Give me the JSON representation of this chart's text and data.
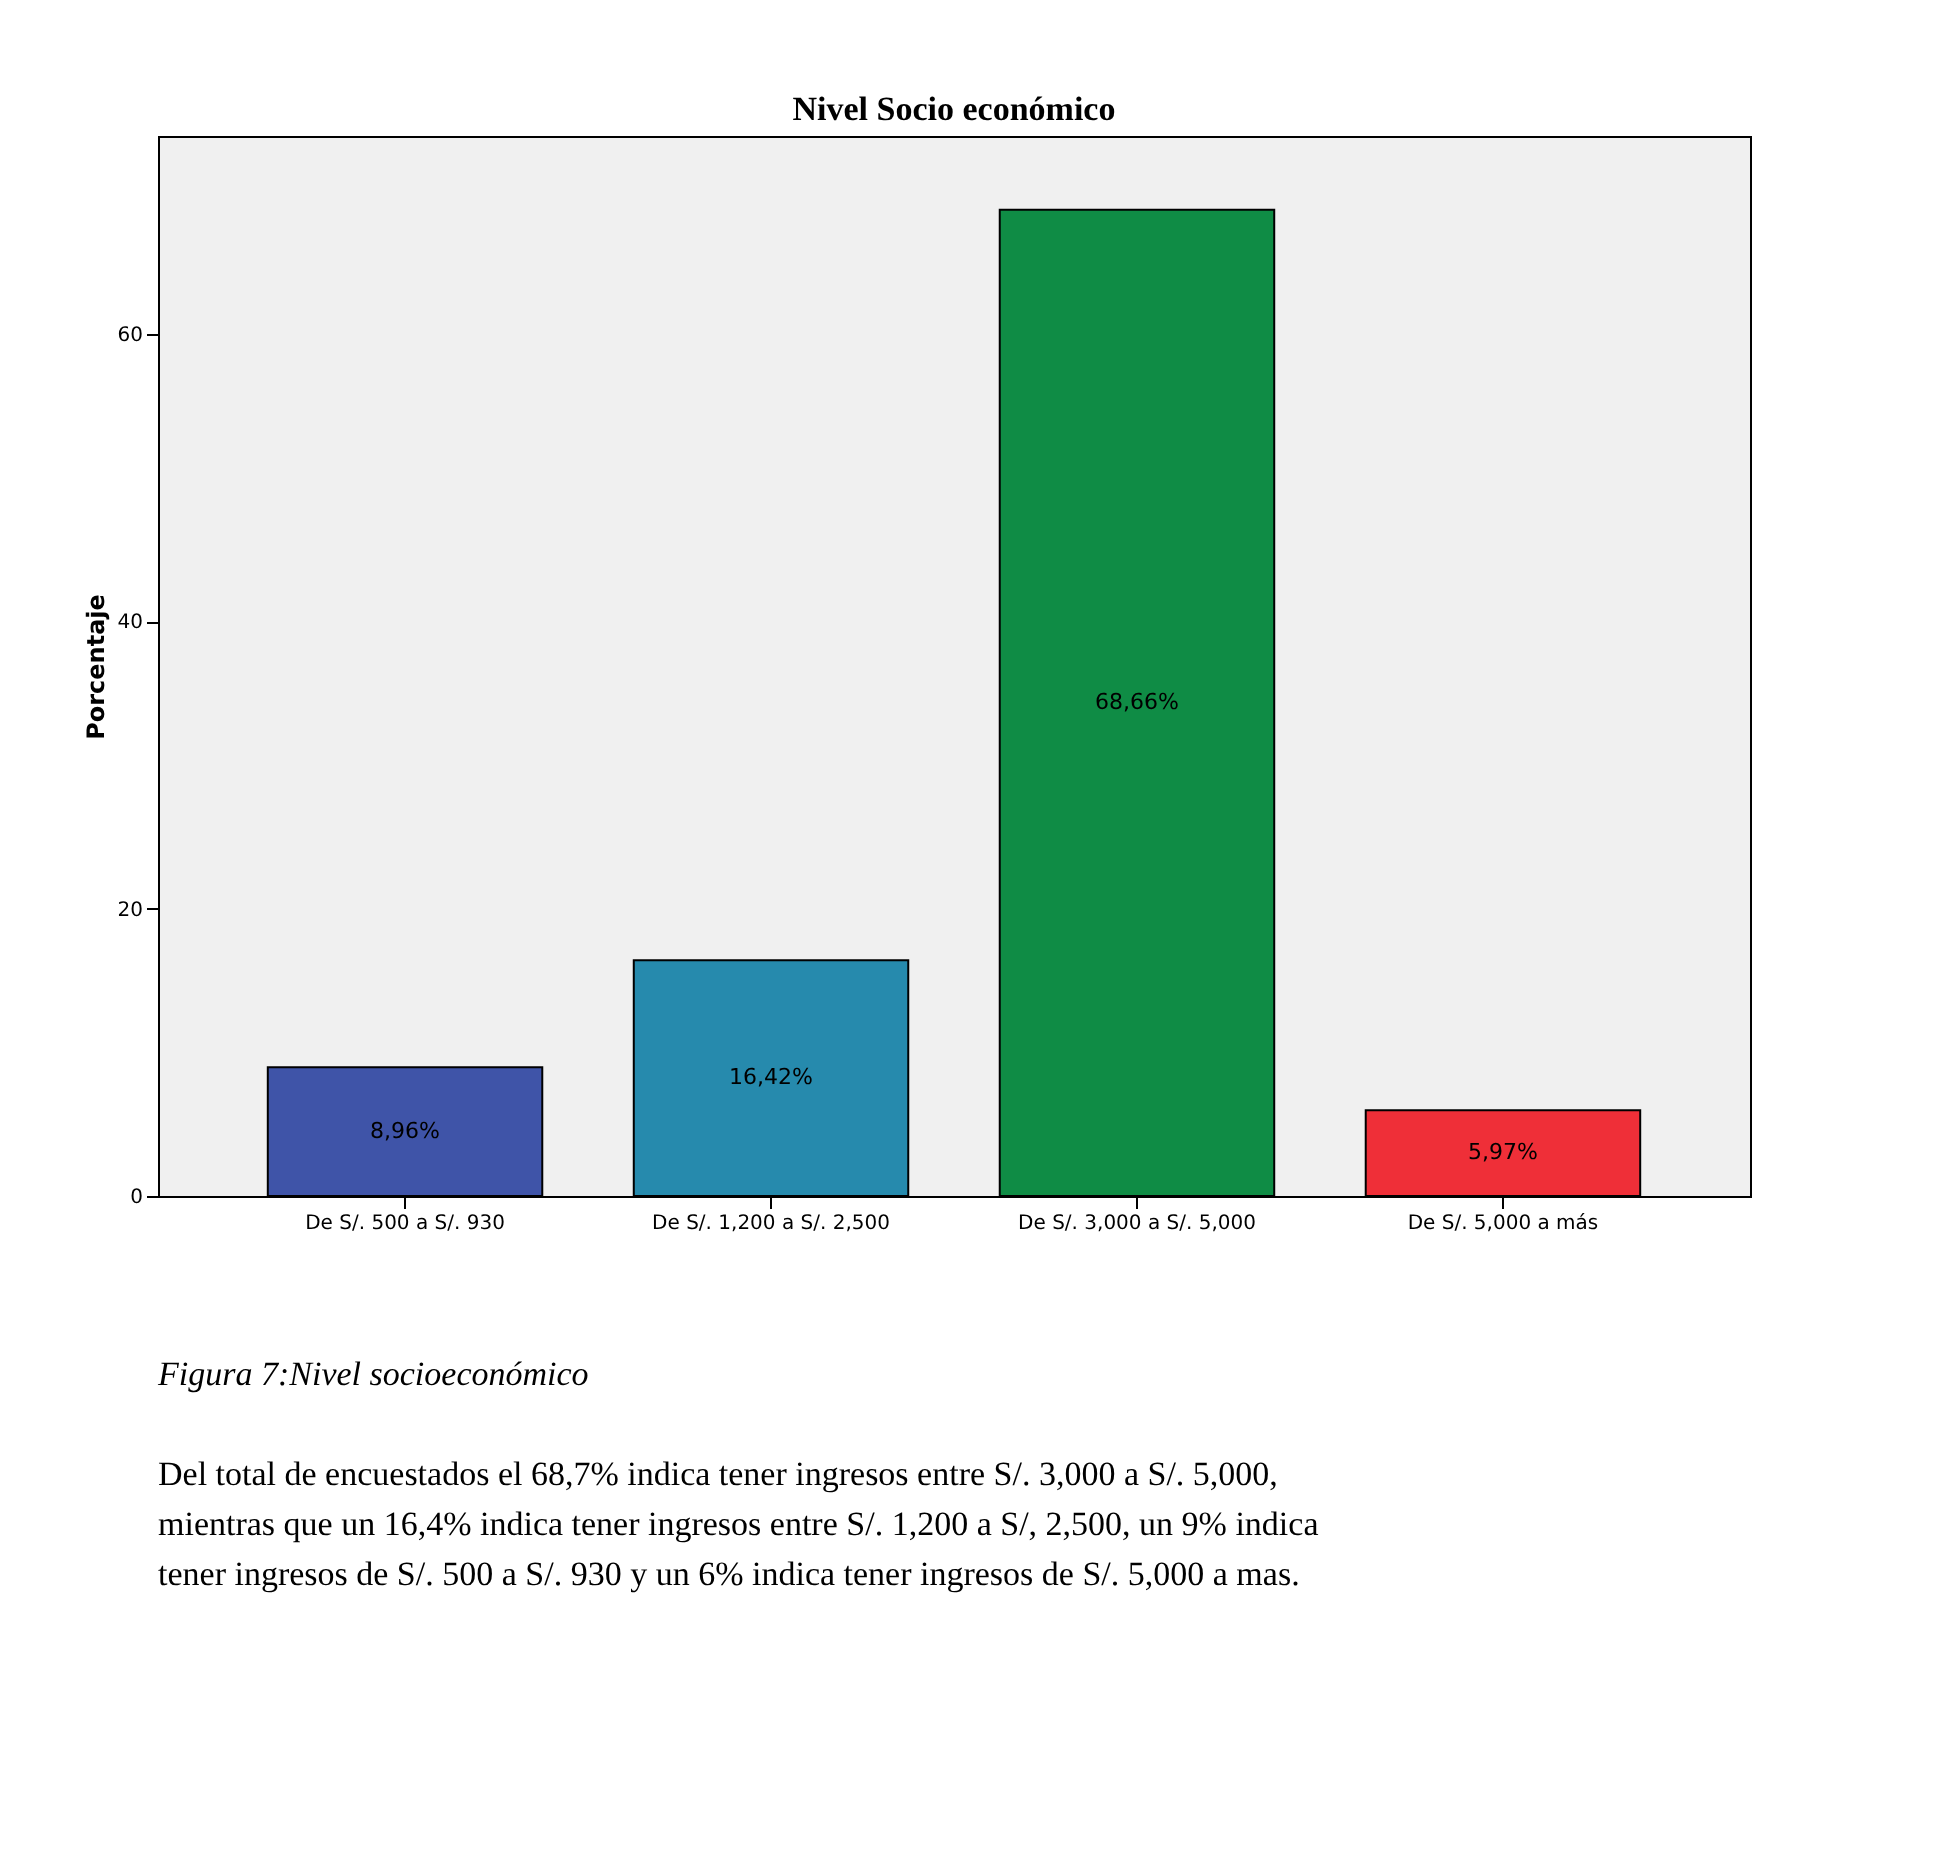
{
  "chart_data": {
    "type": "bar",
    "title": "Nivel Socio económico",
    "ylabel": "Porcentaje",
    "categories": [
      "De S/. 500 a S/. 930",
      "De S/. 1,200 a S/. 2,500",
      "De S/. 3,000 a  S/. 5,000",
      "De S/. 5,000 a más"
    ],
    "values": [
      8.96,
      16.42,
      68.66,
      5.97
    ],
    "colors": [
      "#3f54a8",
      "#268aad",
      "#0f8c45",
      "#ef2f38"
    ],
    "value_labels": [
      "8,96%",
      "16,42%",
      "68,66%",
      "5,97%"
    ],
    "ylim": [
      0,
      73.8
    ],
    "yticks": [
      0,
      20,
      40,
      60
    ],
    "grid": false,
    "annotations": [
      "Figura 7:Nivel socioeconómico",
      "Del total de encuestados el 68,7% indica tener ingresos entre S/. 3,000 a S/. 5,000, mientras que un 16,4% indica tener ingresos entre S/. 1,200 a S/, 2,500, un 9% indica tener ingresos de S/. 500 a S/. 930 y un 6% indica tener ingresos de S/. 5,000 a mas."
    ]
  }
}
